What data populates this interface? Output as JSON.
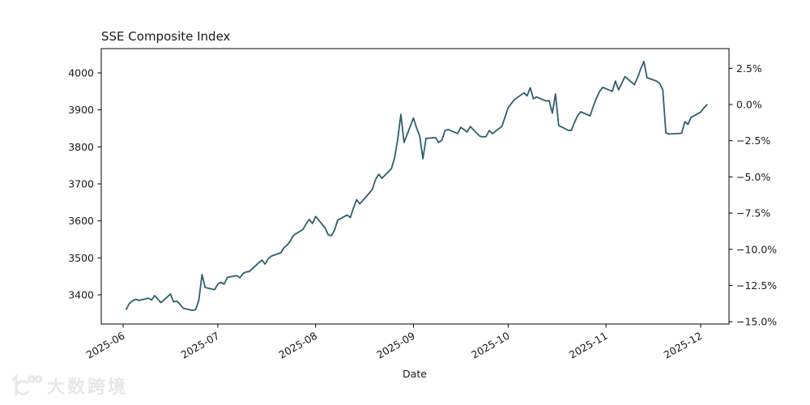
{
  "title": "SSE Composite Index",
  "x_label": "Date",
  "watermark": {
    "text": "大数跨境",
    "logo": "10x100-logo"
  },
  "colors": {
    "line": "#2e5f6e",
    "axis": "#000000",
    "tick_text": "#1a1a1a",
    "watermark": "#e7e7e7",
    "background": "#ffffff"
  },
  "chart_data": {
    "type": "line",
    "title": "SSE Composite Index",
    "xlabel": "Date",
    "ylabel": "",
    "grid": false,
    "legend": "none",
    "y_domain_displayed": [
      3321.2,
      4065.7
    ],
    "x_axis": {
      "tick_labels": [
        "2025-06",
        "2025-07",
        "2025-08",
        "2025-09",
        "2025-10",
        "2025-11",
        "2025-12"
      ],
      "tick_dates": [
        "2025-06-01",
        "2025-07-01",
        "2025-08-01",
        "2025-09-01",
        "2025-10-01",
        "2025-11-01",
        "2025-12-01"
      ],
      "rotation_deg": -30
    },
    "y_axis_left": {
      "tick_labels": [
        "3400",
        "3500",
        "3600",
        "3700",
        "3800",
        "3900",
        "4000"
      ],
      "tick_values": [
        3400,
        3500,
        3600,
        3700,
        3800,
        3900,
        4000
      ]
    },
    "y_axis_right": {
      "tick_labels": [
        "2.5%",
        "0.0%",
        "−2.5%",
        "−5.0%",
        "−7.5%",
        "−10.0%",
        "−12.5%",
        "−15.0%"
      ],
      "tick_pcts": [
        2.5,
        0.0,
        -2.5,
        -5.0,
        -7.5,
        -10.0,
        -12.5,
        -15.0
      ],
      "base_value": 3914.6
    },
    "series": [
      {
        "name": "SSE Composite Index",
        "x": [
          "2025-06-02",
          "2025-06-03",
          "2025-06-04",
          "2025-06-05",
          "2025-06-06",
          "2025-06-09",
          "2025-06-10",
          "2025-06-11",
          "2025-06-12",
          "2025-06-13",
          "2025-06-16",
          "2025-06-17",
          "2025-06-18",
          "2025-06-19",
          "2025-06-20",
          "2025-06-23",
          "2025-06-24",
          "2025-06-25",
          "2025-06-26",
          "2025-06-27",
          "2025-06-30",
          "2025-07-01",
          "2025-07-02",
          "2025-07-03",
          "2025-07-04",
          "2025-07-07",
          "2025-07-08",
          "2025-07-09",
          "2025-07-10",
          "2025-07-11",
          "2025-07-14",
          "2025-07-15",
          "2025-07-16",
          "2025-07-17",
          "2025-07-18",
          "2025-07-21",
          "2025-07-22",
          "2025-07-23",
          "2025-07-24",
          "2025-07-25",
          "2025-07-28",
          "2025-07-29",
          "2025-07-30",
          "2025-07-31",
          "2025-08-01",
          "2025-08-04",
          "2025-08-05",
          "2025-08-06",
          "2025-08-07",
          "2025-08-08",
          "2025-08-11",
          "2025-08-12",
          "2025-08-13",
          "2025-08-14",
          "2025-08-15",
          "2025-08-18",
          "2025-08-19",
          "2025-08-20",
          "2025-08-21",
          "2025-08-22",
          "2025-08-25",
          "2025-08-26",
          "2025-08-27",
          "2025-08-28",
          "2025-08-29",
          "2025-09-01",
          "2025-09-02",
          "2025-09-03",
          "2025-09-04",
          "2025-09-05",
          "2025-09-08",
          "2025-09-09",
          "2025-09-10",
          "2025-09-11",
          "2025-09-12",
          "2025-09-15",
          "2025-09-16",
          "2025-09-17",
          "2025-09-18",
          "2025-09-19",
          "2025-09-22",
          "2025-09-23",
          "2025-09-24",
          "2025-09-25",
          "2025-09-26",
          "2025-09-29",
          "2025-09-30",
          "2025-10-01",
          "2025-10-02",
          "2025-10-03",
          "2025-10-06",
          "2025-10-07",
          "2025-10-08",
          "2025-10-09",
          "2025-10-10",
          "2025-10-13",
          "2025-10-14",
          "2025-10-15",
          "2025-10-16",
          "2025-10-17",
          "2025-10-20",
          "2025-10-21",
          "2025-10-22",
          "2025-10-23",
          "2025-10-24",
          "2025-10-27",
          "2025-10-28",
          "2025-10-29",
          "2025-10-30",
          "2025-10-31",
          "2025-11-03",
          "2025-11-04",
          "2025-11-05",
          "2025-11-06",
          "2025-11-07",
          "2025-11-10",
          "2025-11-11",
          "2025-11-12",
          "2025-11-13",
          "2025-11-14",
          "2025-11-17",
          "2025-11-18",
          "2025-11-19",
          "2025-11-20",
          "2025-11-21",
          "2025-11-24",
          "2025-11-25",
          "2025-11-26",
          "2025-11-27",
          "2025-11-28",
          "2025-12-01",
          "2025-12-02",
          "2025-12-03"
        ],
        "y": [
          3361,
          3377,
          3384,
          3388,
          3385,
          3391,
          3386,
          3398,
          3388,
          3379,
          3402,
          3381,
          3383,
          3375,
          3364,
          3358,
          3360,
          3386,
          3455,
          3420,
          3414,
          3429,
          3434,
          3429,
          3447,
          3452,
          3446,
          3458,
          3462,
          3463,
          3487,
          3494,
          3483,
          3498,
          3505,
          3514,
          3528,
          3535,
          3546,
          3561,
          3577,
          3592,
          3604,
          3593,
          3612,
          3581,
          3562,
          3560,
          3575,
          3602,
          3616,
          3609,
          3635,
          3657,
          3646,
          3675,
          3686,
          3712,
          3726,
          3715,
          3741,
          3770,
          3820,
          3888,
          3812,
          3878,
          3851,
          3829,
          3768,
          3823,
          3825,
          3812,
          3818,
          3844,
          3847,
          3836,
          3853,
          3847,
          3840,
          3855,
          3829,
          3827,
          3828,
          3844,
          3836,
          3855,
          3880,
          3906,
          3917,
          3928,
          3946,
          3938,
          3960,
          3930,
          3935,
          3924,
          3925,
          3891,
          3943,
          3858,
          3845,
          3844,
          3866,
          3884,
          3895,
          3884,
          3910,
          3932,
          3950,
          3961,
          3950,
          3978,
          3954,
          3972,
          3990,
          3968,
          3987,
          4011,
          4031,
          3987,
          3978,
          3972,
          3955,
          3838,
          3835,
          3836,
          3837,
          3868,
          3861,
          3880,
          3894,
          3905,
          3914
        ]
      }
    ]
  }
}
